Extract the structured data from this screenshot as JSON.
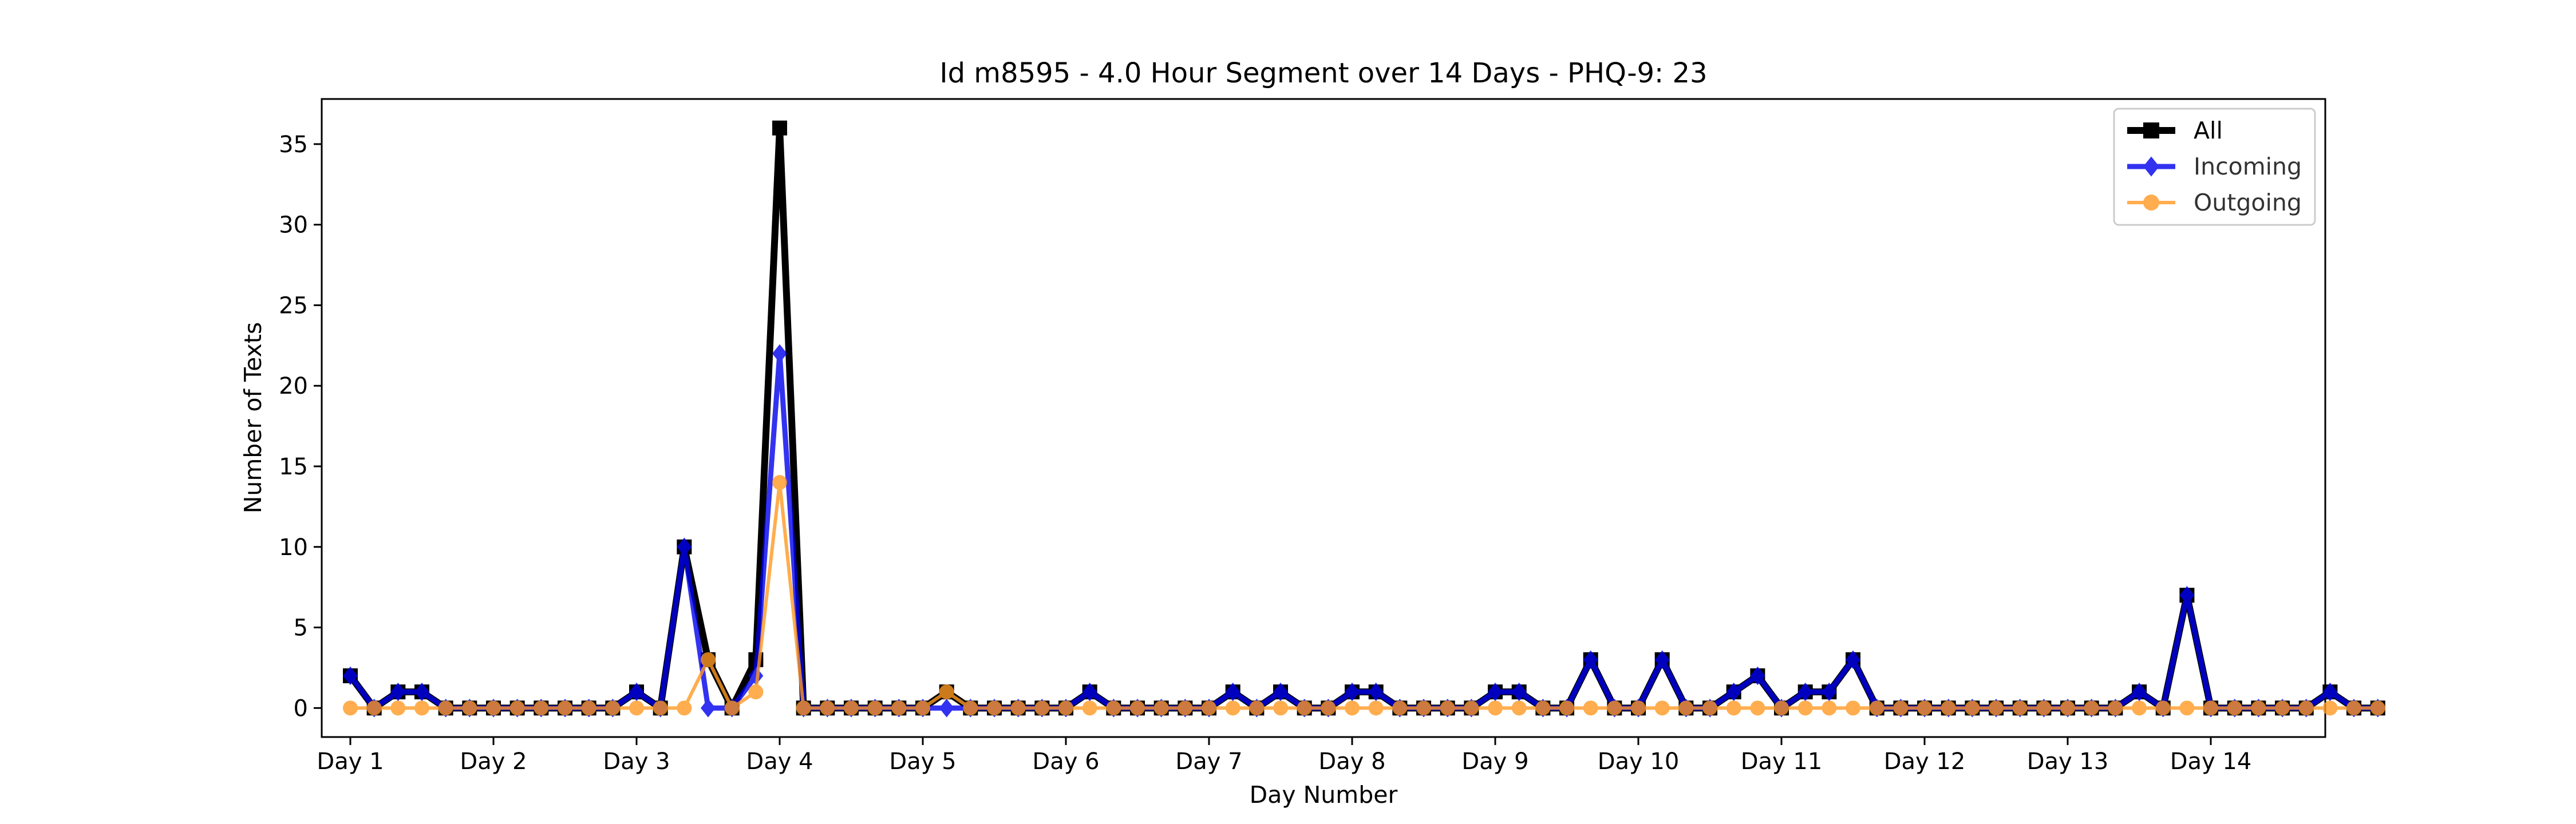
{
  "chart_data": {
    "type": "line",
    "title": "Id m8595 - 4.0 Hour Segment over 14 Days - PHQ-9: 23",
    "xlabel": "Day Number",
    "ylabel": "Number of Texts",
    "xlim": [
      -0.2,
      13.8
    ],
    "ylim": [
      -1.8,
      37.8
    ],
    "x_ticks": [
      0,
      1,
      2,
      3,
      4,
      5,
      6,
      7,
      8,
      9,
      10,
      11,
      12,
      13
    ],
    "x_tick_labels": [
      "Day 1",
      "Day 2",
      "Day 3",
      "Day 4",
      "Day 5",
      "Day 6",
      "Day 7",
      "Day 8",
      "Day 9",
      "Day 10",
      "Day 11",
      "Day 12",
      "Day 13",
      "Day 14"
    ],
    "y_ticks": [
      0,
      5,
      10,
      15,
      20,
      25,
      30,
      35
    ],
    "segment_step": 0.16667,
    "legend_position": "top-right",
    "grid": false,
    "series": [
      {
        "name": "All",
        "color": "#000000",
        "marker": "square",
        "values": [
          2,
          0,
          1,
          1,
          0,
          0,
          0,
          0,
          0,
          0,
          0,
          0,
          1,
          0,
          10,
          3,
          0,
          3,
          36,
          0,
          0,
          0,
          0,
          0,
          0,
          1,
          0,
          0,
          0,
          0,
          0,
          1,
          0,
          0,
          0,
          0,
          0,
          1,
          0,
          1,
          0,
          0,
          1,
          1,
          0,
          0,
          0,
          0,
          1,
          1,
          0,
          0,
          3,
          0,
          0,
          3,
          0,
          0,
          1,
          2,
          0,
          1,
          1,
          3,
          0,
          0,
          0,
          0,
          0,
          0,
          0,
          0,
          0,
          0,
          0,
          1,
          0,
          7,
          0,
          0,
          0,
          0,
          0,
          1,
          0,
          0
        ]
      },
      {
        "name": "Incoming",
        "color": "#0000ee",
        "marker": "diamond",
        "values": [
          2,
          0,
          1,
          1,
          0,
          0,
          0,
          0,
          0,
          0,
          0,
          0,
          1,
          0,
          10,
          0,
          0,
          2,
          22,
          0,
          0,
          0,
          0,
          0,
          0,
          0,
          0,
          0,
          0,
          0,
          0,
          1,
          0,
          0,
          0,
          0,
          0,
          1,
          0,
          1,
          0,
          0,
          1,
          1,
          0,
          0,
          0,
          0,
          1,
          1,
          0,
          0,
          3,
          0,
          0,
          3,
          0,
          0,
          1,
          2,
          0,
          1,
          1,
          3,
          0,
          0,
          0,
          0,
          0,
          0,
          0,
          0,
          0,
          0,
          0,
          1,
          0,
          7,
          0,
          0,
          0,
          0,
          0,
          1,
          0,
          0
        ]
      },
      {
        "name": "Outgoing",
        "color": "#ff9922",
        "marker": "circle",
        "values": [
          0,
          0,
          0,
          0,
          0,
          0,
          0,
          0,
          0,
          0,
          0,
          0,
          0,
          0,
          0,
          3,
          0,
          1,
          14,
          0,
          0,
          0,
          0,
          0,
          0,
          1,
          0,
          0,
          0,
          0,
          0,
          0,
          0,
          0,
          0,
          0,
          0,
          0,
          0,
          0,
          0,
          0,
          0,
          0,
          0,
          0,
          0,
          0,
          0,
          0,
          0,
          0,
          0,
          0,
          0,
          0,
          0,
          0,
          0,
          0,
          0,
          0,
          0,
          0,
          0,
          0,
          0,
          0,
          0,
          0,
          0,
          0,
          0,
          0,
          0,
          0,
          0,
          0,
          0,
          0,
          0,
          0,
          0,
          0,
          0,
          0
        ]
      }
    ]
  }
}
